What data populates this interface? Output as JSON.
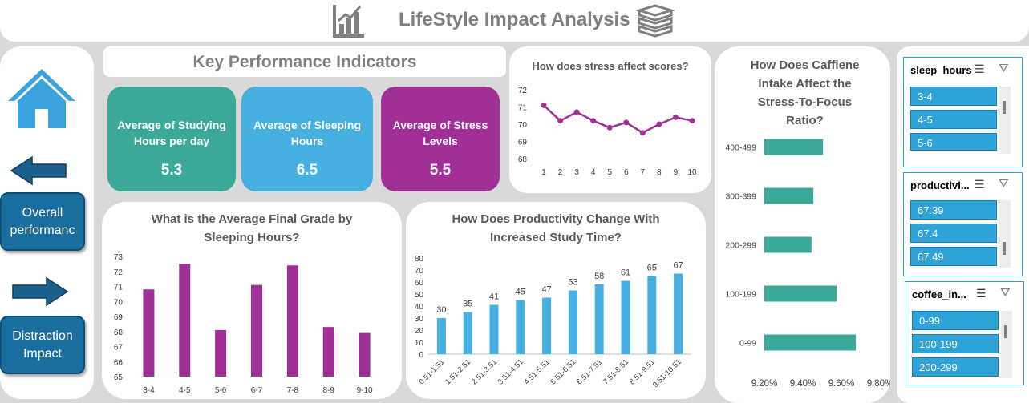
{
  "dashboard": {
    "title": "LifeStyle Impact Analysis"
  },
  "nav": {
    "overall_label": "Overall performanc",
    "distraction_label": "Distraction Impact"
  },
  "kpi": {
    "header": "Key Performance Indicators",
    "cards": [
      {
        "label": "Average of Studying Hours per day",
        "value": "5.3",
        "color": "#3aa99a"
      },
      {
        "label": "Average of Sleeping Hours",
        "value": "6.5",
        "color": "#46b0e0"
      },
      {
        "label": "Average of Stress Levels",
        "value": "5.5",
        "color": "#a02f96"
      }
    ]
  },
  "charts": {
    "stress": {
      "title": "How does stress affect scores?"
    },
    "grade": {
      "title": "What is the Average Final Grade by Sleeping Hours?"
    },
    "productivity": {
      "title": "How Does Productivity Change With Increased Study Time?"
    },
    "caffeine": {
      "title": "How Does Caffiene Intake Affect the Stress-To-Focus Ratio?"
    }
  },
  "chart_data": [
    {
      "type": "line",
      "title": "How does stress affect scores?",
      "x": [
        1,
        2,
        3,
        4,
        5,
        6,
        7,
        8,
        9,
        10
      ],
      "values": [
        71.1,
        70.2,
        70.7,
        70.2,
        69.8,
        70.1,
        69.5,
        70.0,
        70.4,
        70.2
      ],
      "ylim": [
        68,
        72
      ],
      "yticks": [
        68,
        69,
        70,
        71,
        72
      ],
      "color": "#a02f96"
    },
    {
      "type": "bar",
      "title": "What is the Average Final Grade by Sleeping Hours?",
      "categories": [
        "3-4",
        "4-5",
        "5-6",
        "6-7",
        "7-8",
        "8-9",
        "9-10"
      ],
      "values": [
        70.8,
        72.5,
        68.1,
        71.1,
        72.4,
        68.3,
        67.9
      ],
      "ylim": [
        65,
        73
      ],
      "yticks": [
        65,
        66,
        67,
        68,
        69,
        70,
        71,
        72,
        73
      ],
      "color": "#a02f96"
    },
    {
      "type": "bar",
      "title": "How Does Productivity Change With Increased Study Time?",
      "categories": [
        "0.51-1.51",
        "1.51-2.51",
        "2.51-3.51",
        "3.51-4.51",
        "4.51-5.51",
        "5.51-6.51",
        "6.51-7.51",
        "7.51-8.51",
        "8.51-9.51",
        "9.51-10.51"
      ],
      "values": [
        30,
        35,
        41,
        45,
        47,
        53,
        58,
        61,
        65,
        67
      ],
      "ylim": [
        0,
        80
      ],
      "yticks": [
        0,
        10,
        20,
        30,
        40,
        50,
        60,
        70,
        80
      ],
      "color": "#46b0e0"
    },
    {
      "type": "bar",
      "orientation": "horizontal",
      "title": "How Does Caffiene Intake Affect the Stress-To-Focus Ratio?",
      "categories": [
        "400-499",
        "300-399",
        "200-299",
        "100-199",
        "0-99"
      ],
      "values": [
        9.505,
        9.455,
        9.445,
        9.575,
        9.675
      ],
      "xlim": [
        9.2,
        9.8
      ],
      "xticks": [
        "9.20%",
        "9.40%",
        "9.60%",
        "9.80%"
      ],
      "color": "#3aa99a"
    }
  ],
  "slicers": [
    {
      "header": "sleep_hours",
      "items": [
        "3-4",
        "4-5",
        "5-6"
      ]
    },
    {
      "header": "productivi...",
      "items": [
        "67.39",
        "67.4",
        "67.49"
      ]
    },
    {
      "header": "coffee_in...",
      "items": [
        "0-99",
        "100-199",
        "200-299"
      ]
    }
  ]
}
